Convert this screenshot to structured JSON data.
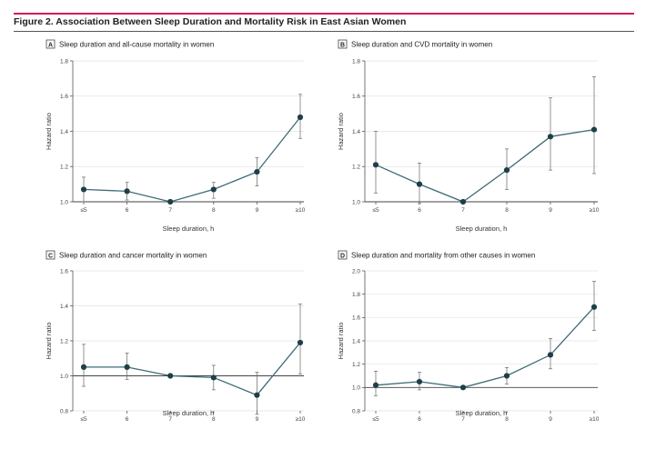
{
  "figure": {
    "title": "Figure 2. Association Between Sleep Duration and Mortality Risk in East Asian Women",
    "accent_color": "#d4145a",
    "series_color": "#3d6b76",
    "point_color": "#1f3f47"
  },
  "chart_data": [
    {
      "panel": "A",
      "type": "line",
      "title": "Sleep duration and all-cause mortality in women",
      "xlabel": "Sleep duration, h",
      "ylabel": "Hazard ratio",
      "categories": [
        "≤5",
        "6",
        "7",
        "8",
        "9",
        "≥10"
      ],
      "values": [
        1.07,
        1.06,
        1.0,
        1.07,
        1.17,
        1.48
      ],
      "lower": [
        1.0,
        1.01,
        1.0,
        1.02,
        1.09,
        1.36
      ],
      "upper": [
        1.14,
        1.11,
        1.0,
        1.11,
        1.25,
        1.61
      ],
      "ylim": [
        1.0,
        1.8
      ],
      "yticks": [
        "1.0",
        "1.2",
        "1.4",
        "1.6",
        "1.8"
      ],
      "reference": 1.0,
      "grid": true
    },
    {
      "panel": "B",
      "type": "line",
      "title": "Sleep duration and CVD mortality in women",
      "xlabel": "Sleep duration, h",
      "ylabel": "Hazard ratio",
      "categories": [
        "≤5",
        "6",
        "7",
        "8",
        "9",
        "≥10"
      ],
      "values": [
        1.21,
        1.1,
        1.0,
        1.18,
        1.37,
        1.41
      ],
      "lower": [
        1.05,
        0.99,
        1.0,
        1.07,
        1.18,
        1.16
      ],
      "upper": [
        1.4,
        1.22,
        1.0,
        1.3,
        1.59,
        1.71
      ],
      "ylim": [
        1.0,
        1.8
      ],
      "yticks": [
        "1.0",
        "1.2",
        "1.4",
        "1.6",
        "1.8"
      ],
      "reference": 1.0,
      "grid": true
    },
    {
      "panel": "C",
      "type": "line",
      "title": "Sleep duration and cancer mortality in women",
      "xlabel": "Sleep duration, h",
      "ylabel": "Hazard ratio",
      "categories": [
        "≤5",
        "6",
        "7",
        "8",
        "9",
        "≥10"
      ],
      "values": [
        1.05,
        1.05,
        1.0,
        0.99,
        0.89,
        1.19
      ],
      "lower": [
        0.94,
        0.98,
        1.0,
        0.92,
        0.78,
        1.01
      ],
      "upper": [
        1.18,
        1.13,
        1.0,
        1.06,
        1.02,
        1.41
      ],
      "ylim": [
        0.8,
        1.6
      ],
      "yticks": [
        "0.8",
        "1.0",
        "1.2",
        "1.4",
        "1.6"
      ],
      "reference": 1.0,
      "grid": true
    },
    {
      "panel": "D",
      "type": "line",
      "title": "Sleep duration and mortality from other causes in women",
      "xlabel": "Sleep duration, h",
      "ylabel": "Hazard ratio",
      "categories": [
        "≤5",
        "6",
        "7",
        "8",
        "9",
        "≥10"
      ],
      "values": [
        1.02,
        1.05,
        1.0,
        1.1,
        1.28,
        1.69
      ],
      "lower": [
        0.93,
        0.98,
        1.0,
        1.03,
        1.16,
        1.49
      ],
      "upper": [
        1.14,
        1.13,
        1.0,
        1.17,
        1.42,
        1.91
      ],
      "ylim": [
        0.8,
        2.0
      ],
      "yticks": [
        "0.8",
        "1.0",
        "1.2",
        "1.4",
        "1.6",
        "1.8",
        "2.0"
      ],
      "reference": 1.0,
      "grid": true
    }
  ]
}
